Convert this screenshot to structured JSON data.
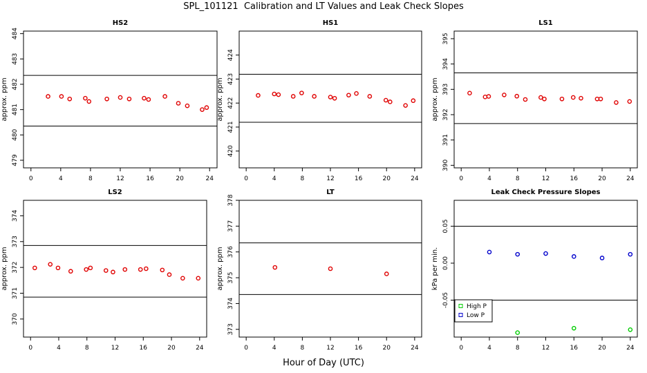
{
  "figure": {
    "title": "SPL_101121  Calibration and LT Values and Leak Check Slopes",
    "xlabel": "Hour of Day (UTC)"
  },
  "chart_data": [
    {
      "type": "scatter",
      "title": "HS2",
      "ylabel": "approx. ppm",
      "xlim": [
        -1,
        25
      ],
      "ylim": [
        478.7,
        484.1
      ],
      "xticks": [
        0,
        4,
        8,
        12,
        16,
        20,
        24
      ],
      "yticks": [
        479,
        480,
        481,
        482,
        483,
        484
      ],
      "hlines": [
        482.35,
        480.35
      ],
      "series": [
        {
          "color": "#e00000",
          "marker": "circle",
          "points": [
            [
              2.3,
              481.52
            ],
            [
              4.1,
              481.52
            ],
            [
              5.2,
              481.42
            ],
            [
              7.3,
              481.45
            ],
            [
              7.8,
              481.32
            ],
            [
              10.2,
              481.42
            ],
            [
              12.0,
              481.48
            ],
            [
              13.2,
              481.42
            ],
            [
              15.2,
              481.45
            ],
            [
              15.8,
              481.4
            ],
            [
              18.0,
              481.52
            ],
            [
              19.8,
              481.25
            ],
            [
              21.0,
              481.15
            ],
            [
              23.0,
              481.0
            ],
            [
              23.6,
              481.08
            ]
          ]
        }
      ]
    },
    {
      "type": "scatter",
      "title": "HS1",
      "ylabel": "approx. ppm",
      "xlim": [
        -1,
        25
      ],
      "ylim": [
        419.3,
        425.0
      ],
      "xticks": [
        0,
        4,
        8,
        12,
        16,
        20,
        24
      ],
      "yticks": [
        420,
        421,
        422,
        423,
        424
      ],
      "hlines": [
        423.2,
        421.2
      ],
      "series": [
        {
          "color": "#e00000",
          "marker": "circle",
          "points": [
            [
              1.7,
              422.32
            ],
            [
              4.0,
              422.38
            ],
            [
              4.6,
              422.35
            ],
            [
              6.7,
              422.28
            ],
            [
              7.9,
              422.42
            ],
            [
              9.7,
              422.28
            ],
            [
              12.0,
              422.25
            ],
            [
              12.6,
              422.2
            ],
            [
              14.6,
              422.33
            ],
            [
              15.7,
              422.4
            ],
            [
              17.6,
              422.28
            ],
            [
              19.9,
              422.12
            ],
            [
              20.5,
              422.05
            ],
            [
              22.7,
              421.9
            ],
            [
              23.8,
              422.1
            ]
          ]
        }
      ]
    },
    {
      "type": "scatter",
      "title": "LS1",
      "ylabel": "approx. ppm",
      "xlim": [
        -1,
        25
      ],
      "ylim": [
        389.9,
        395.3
      ],
      "xticks": [
        0,
        4,
        8,
        12,
        16,
        20,
        24
      ],
      "yticks": [
        390,
        391,
        392,
        393,
        394,
        395
      ],
      "hlines": [
        393.65,
        391.65
      ],
      "series": [
        {
          "color": "#e00000",
          "marker": "circle",
          "points": [
            [
              1.2,
              392.85
            ],
            [
              3.4,
              392.7
            ],
            [
              3.9,
              392.72
            ],
            [
              6.1,
              392.78
            ],
            [
              7.9,
              392.73
            ],
            [
              9.1,
              392.6
            ],
            [
              11.3,
              392.68
            ],
            [
              11.8,
              392.62
            ],
            [
              14.3,
              392.62
            ],
            [
              15.9,
              392.68
            ],
            [
              17.0,
              392.65
            ],
            [
              19.3,
              392.62
            ],
            [
              19.8,
              392.62
            ],
            [
              22.0,
              392.48
            ],
            [
              23.9,
              392.52
            ]
          ]
        }
      ]
    },
    {
      "type": "scatter",
      "title": "LS2",
      "ylabel": "approx. ppm",
      "xlim": [
        -1,
        25
      ],
      "ylim": [
        369.3,
        374.6
      ],
      "xticks": [
        0,
        4,
        8,
        12,
        16,
        20,
        24
      ],
      "yticks": [
        370,
        371,
        372,
        373,
        374
      ],
      "hlines": [
        372.85,
        370.85
      ],
      "series": [
        {
          "color": "#e00000",
          "marker": "circle",
          "points": [
            [
              0.6,
              371.98
            ],
            [
              2.8,
              372.12
            ],
            [
              3.9,
              371.98
            ],
            [
              5.7,
              371.85
            ],
            [
              7.9,
              371.92
            ],
            [
              8.5,
              371.98
            ],
            [
              10.7,
              371.88
            ],
            [
              11.7,
              371.82
            ],
            [
              13.4,
              371.92
            ],
            [
              15.6,
              371.92
            ],
            [
              16.4,
              371.95
            ],
            [
              18.7,
              371.9
            ],
            [
              19.7,
              371.72
            ],
            [
              21.6,
              371.58
            ],
            [
              23.8,
              371.58
            ]
          ]
        }
      ]
    },
    {
      "type": "scatter",
      "title": "LT",
      "ylabel": "approx. ppm",
      "xlim": [
        -1,
        25
      ],
      "ylim": [
        372.7,
        378.0
      ],
      "xticks": [
        0,
        4,
        8,
        12,
        16,
        20,
        24
      ],
      "yticks": [
        373,
        374,
        375,
        376,
        377,
        378
      ],
      "hlines": [
        376.35,
        374.35
      ],
      "series": [
        {
          "color": "#e00000",
          "marker": "circle",
          "points": [
            [
              4.1,
              375.4
            ],
            [
              12.0,
              375.35
            ],
            [
              20.0,
              375.15
            ]
          ]
        }
      ]
    },
    {
      "type": "scatter",
      "title": "Leak Check Pressure Slopes",
      "ylabel": "kPa per min.",
      "xlim": [
        -1,
        25
      ],
      "ylim": [
        -0.1,
        0.085
      ],
      "xticks": [
        0,
        4,
        8,
        12,
        16,
        20,
        24
      ],
      "yticks": [
        -0.05,
        0.0,
        0.05
      ],
      "ytick_labels": [
        "-0.05",
        "0.00",
        "0.05"
      ],
      "hlines": [
        0.05,
        -0.05
      ],
      "legend": "bottom-left",
      "series": [
        {
          "name": "High P",
          "color": "#00cc00",
          "marker": "circle",
          "points": [
            [
              8.0,
              -0.094
            ],
            [
              16.0,
              -0.088
            ],
            [
              24.0,
              -0.09
            ]
          ]
        },
        {
          "name": "Low P",
          "color": "#0000cc",
          "marker": "circle",
          "points": [
            [
              4.0,
              0.015
            ],
            [
              8.0,
              0.012
            ],
            [
              12.0,
              0.013
            ],
            [
              16.0,
              0.009
            ],
            [
              20.0,
              0.007
            ],
            [
              24.0,
              0.012
            ]
          ]
        }
      ]
    }
  ]
}
